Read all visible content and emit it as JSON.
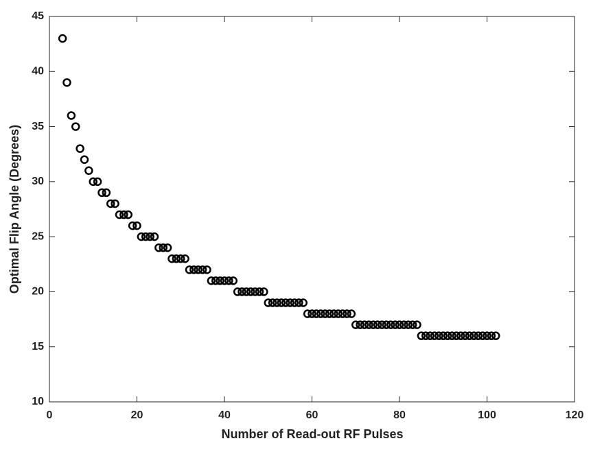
{
  "chart_data": {
    "type": "scatter",
    "xlabel": "Number of Read-out RF Pulses",
    "ylabel": "Optimal Flip Angle (Degrees)",
    "series": [
      {
        "color": "#000000",
        "x": [
          3,
          4,
          5,
          6,
          7,
          8,
          9,
          10,
          11,
          12,
          13,
          14,
          15,
          16,
          17,
          18,
          19,
          20,
          21,
          22,
          23,
          24,
          25,
          26,
          27,
          28,
          29,
          30,
          31,
          32,
          33,
          34,
          35,
          36,
          37,
          38,
          39,
          40,
          41,
          42,
          43,
          44,
          45,
          46,
          47,
          48,
          49,
          50,
          51,
          52,
          53,
          54,
          55,
          56,
          57,
          58,
          59,
          60,
          61,
          62,
          63,
          64,
          65,
          66,
          67,
          68,
          69,
          70,
          71,
          72,
          73,
          74,
          75,
          76,
          77,
          78,
          79,
          80,
          81,
          82,
          83,
          84,
          85,
          86,
          87,
          88,
          89,
          90,
          91,
          92,
          93,
          94,
          95,
          96,
          97,
          98,
          99,
          100,
          101,
          102
        ],
        "values": [
          43,
          39,
          36,
          35,
          33,
          32,
          31,
          30,
          30,
          29,
          29,
          28,
          28,
          27,
          27,
          27,
          26,
          26,
          25,
          25,
          25,
          25,
          24,
          24,
          24,
          23,
          23,
          23,
          23,
          22,
          22,
          22,
          22,
          22,
          21,
          21,
          21,
          21,
          21,
          21,
          20,
          20,
          20,
          20,
          20,
          20,
          20,
          19,
          19,
          19,
          19,
          19,
          19,
          19,
          19,
          19,
          18,
          18,
          18,
          18,
          18,
          18,
          18,
          18,
          18,
          18,
          18,
          17,
          17,
          17,
          17,
          17,
          17,
          17,
          17,
          17,
          17,
          17,
          17,
          17,
          17,
          17,
          16,
          16,
          16,
          16,
          16,
          16,
          16,
          16,
          16,
          16,
          16,
          16,
          16,
          16,
          16,
          16,
          16,
          16
        ]
      }
    ],
    "xlim": [
      0,
      120
    ],
    "xticks": [
      0,
      20,
      40,
      60,
      80,
      100,
      120
    ],
    "ylim": [
      10,
      45
    ],
    "yticks": [
      10,
      15,
      20,
      25,
      30,
      35,
      40,
      45
    ]
  }
}
